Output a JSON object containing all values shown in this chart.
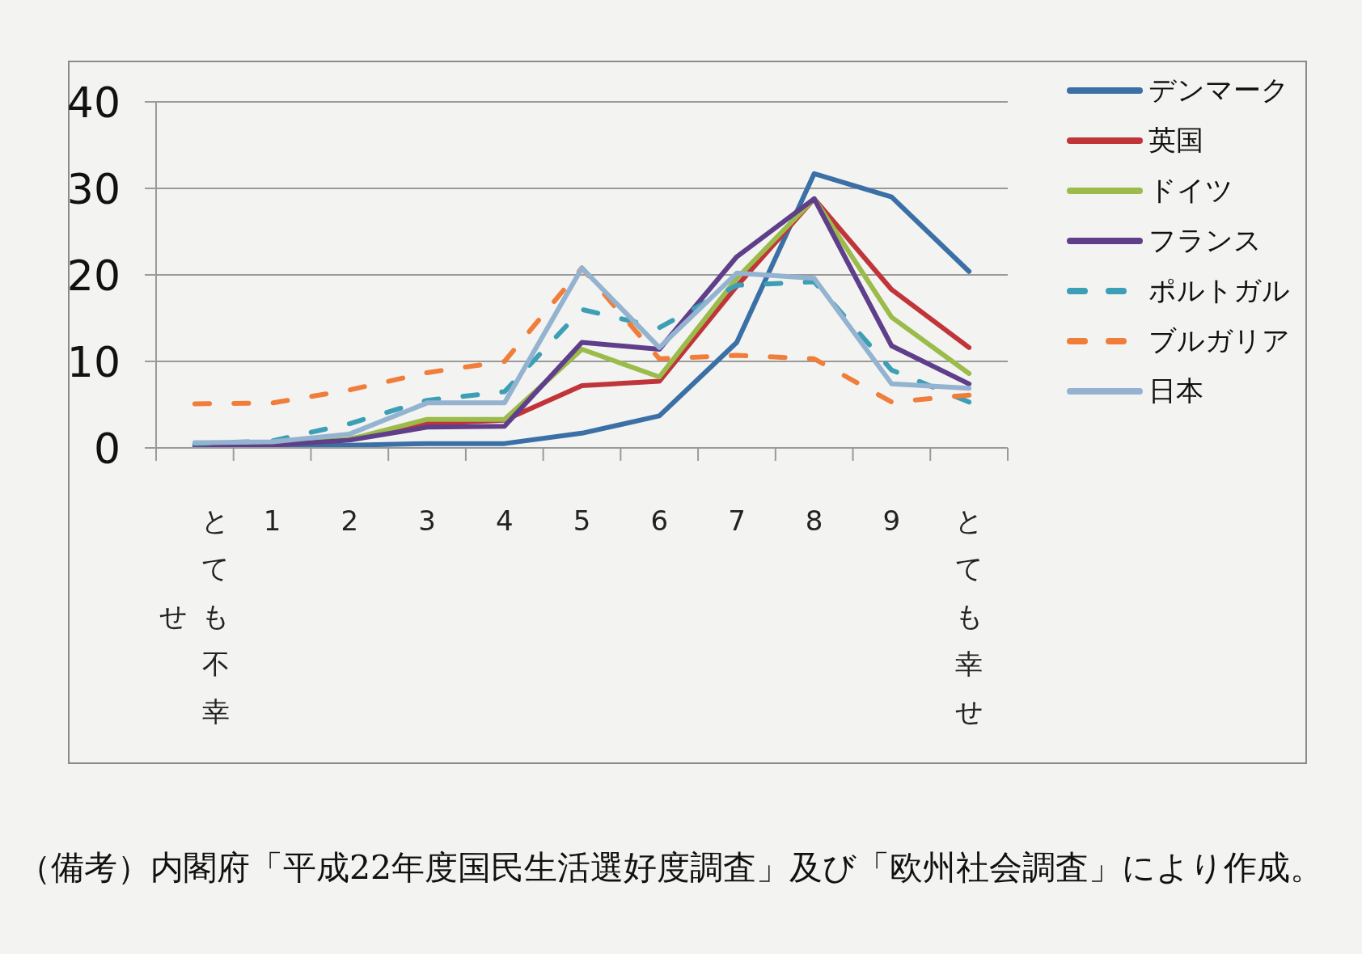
{
  "chart_data": {
    "type": "line",
    "categories": [
      "とても不幸せ",
      "1",
      "2",
      "3",
      "4",
      "5",
      "6",
      "7",
      "8",
      "9",
      "とても幸せ"
    ],
    "series": [
      {
        "name": "デンマーク",
        "color": "#3b70a6",
        "values": [
          0.2,
          0.2,
          0.3,
          0.5,
          0.5,
          1.7,
          3.7,
          12.2,
          31.7,
          29,
          20.4
        ]
      },
      {
        "name": "英国",
        "color": "#c0353a",
        "values": [
          null,
          null,
          1,
          2.8,
          3.2,
          7.2,
          7.7,
          18.7,
          28.8,
          18.3,
          11.6
        ]
      },
      {
        "name": "ドイツ",
        "color": "#9bbb4a",
        "values": [
          0.4,
          0.4,
          1,
          3.3,
          3.3,
          11.4,
          8.2,
          19.6,
          28.8,
          15.1,
          8.6
        ]
      },
      {
        "name": "フランス",
        "color": "#5f3f8a",
        "values": [
          0.3,
          0.3,
          0.9,
          2.4,
          2.5,
          12.2,
          11.4,
          22.1,
          28.8,
          11.8,
          7.4
        ]
      },
      {
        "name": "ポルトガル",
        "color": "#3d9fb5",
        "line_style": "dashed",
        "values": [
          0.5,
          0.8,
          2.8,
          5.5,
          6.5,
          16,
          13.9,
          18.8,
          19.2,
          9,
          5.3
        ]
      },
      {
        "name": "ブルガリア",
        "color": "#f07e3a",
        "line_style": "dashed",
        "values": [
          5.1,
          5.2,
          6.7,
          8.7,
          10,
          20.8,
          10.3,
          10.7,
          10.3,
          5.3,
          6.1
        ]
      },
      {
        "name": "日本",
        "color": "#93b3d0",
        "values": [
          0.6,
          0.7,
          1.6,
          5.2,
          5.2,
          20.8,
          11.6,
          20.2,
          19.6,
          7.4,
          6.9
        ]
      }
    ],
    "ylim": [
      0,
      40
    ],
    "yticks": [
      0,
      10,
      20,
      30,
      40
    ],
    "grid": "y",
    "legend": "top right",
    "annotations": [
      "（備考）内閣府「平成22年度国民生活選好度調査」及び「欧州社会調査」により作成。"
    ]
  }
}
